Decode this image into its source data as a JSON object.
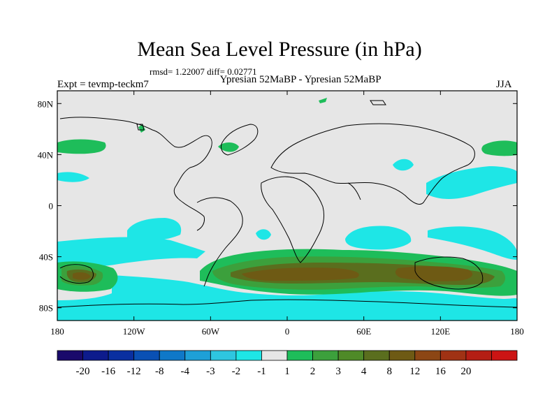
{
  "figure": {
    "title": "Mean Sea Level Pressure (in hPa)",
    "stats": "rmsd= 1.22007 diff= 0.02771",
    "experiment": "Expt = tevmp-teckm7",
    "comparison": "Ypresian  52MaBP - Ypresian  52MaBP",
    "season": "JJA"
  },
  "chart_data": {
    "type": "heatmap",
    "title": "Mean Sea Level Pressure (in hPa)",
    "xlabel": "",
    "ylabel": "",
    "x_range": [
      -180,
      180
    ],
    "y_range": [
      -90,
      90
    ],
    "x_ticks": [
      {
        "value": -180,
        "label": "180"
      },
      {
        "value": -120,
        "label": "120W"
      },
      {
        "value": -60,
        "label": "60W"
      },
      {
        "value": 0,
        "label": "0"
      },
      {
        "value": 60,
        "label": "60E"
      },
      {
        "value": 120,
        "label": "120E"
      },
      {
        "value": 180,
        "label": "180"
      }
    ],
    "y_ticks": [
      {
        "value": 80,
        "label": "80N"
      },
      {
        "value": 40,
        "label": "40N"
      },
      {
        "value": 0,
        "label": "0"
      },
      {
        "value": -40,
        "label": "40S"
      },
      {
        "value": -80,
        "label": "80S"
      }
    ],
    "colorbar": {
      "colors": [
        "#1a0a6b",
        "#0d1b8c",
        "#0a2fa0",
        "#0a50b4",
        "#0f78c8",
        "#1ea0d7",
        "#2ec6e0",
        "#1ee6e6",
        "#e6e6e6",
        "#1ebd5a",
        "#3ca03c",
        "#4f8a28",
        "#5a6e1e",
        "#6e5a14",
        "#8c4614",
        "#a03214",
        "#b41e14",
        "#cc1414"
      ],
      "labels": [
        "-20",
        "-16",
        "-12",
        "-8",
        "-4",
        "-3",
        "-2",
        "-1",
        "1",
        "2",
        "3",
        "4",
        "8",
        "12",
        "16",
        "20"
      ]
    },
    "field_color_map": {
      "background": "#e6e6e6",
      "minus1": "#1ee6e6",
      "plus1": "#1ebd5a",
      "plus2": "#3ca03c",
      "plus4": "#5a6e1e",
      "plus8": "#6e5a14"
    }
  }
}
